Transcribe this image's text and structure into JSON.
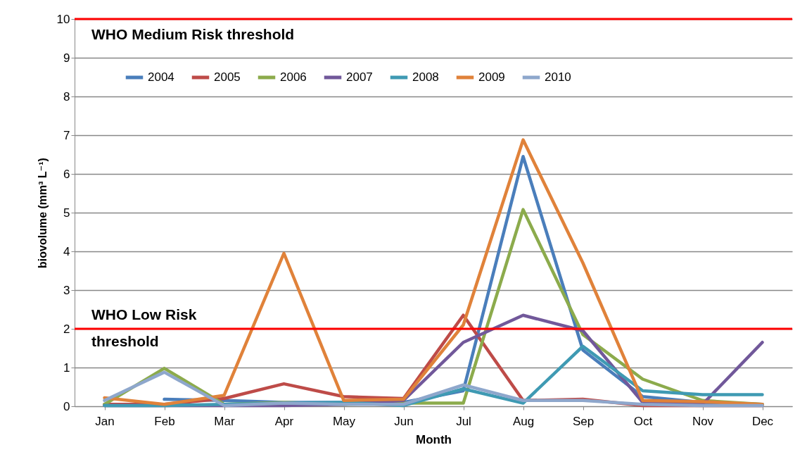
{
  "chart_data": {
    "type": "line",
    "xlabel": "Month",
    "ylabel": "biovolume (mm³ L⁻¹)",
    "categories": [
      "Jan",
      "Feb",
      "Mar",
      "Apr",
      "May",
      "Jun",
      "Jul",
      "Aug",
      "Sep",
      "Oct",
      "Nov",
      "Dec"
    ],
    "series": [
      {
        "name": "2004",
        "color": "#4a7ebb",
        "values": [
          null,
          0.18,
          0.15,
          0.1,
          0.1,
          0.1,
          0.4,
          6.45,
          1.45,
          0.25,
          0.1,
          0.05
        ]
      },
      {
        "name": "2005",
        "color": "#be4b48",
        "values": [
          0.05,
          0.05,
          0.2,
          0.58,
          0.25,
          0.2,
          2.35,
          0.15,
          0.18,
          0.02,
          0.02,
          0.02
        ]
      },
      {
        "name": "2006",
        "color": "#8cab4c",
        "values": [
          0.05,
          0.98,
          0.05,
          0.1,
          0.05,
          0.08,
          0.08,
          5.08,
          1.85,
          0.7,
          0.15,
          0.05
        ]
      },
      {
        "name": "2007",
        "color": "#71589a",
        "values": [
          0.02,
          0.02,
          0.02,
          0.02,
          0.05,
          0.15,
          1.65,
          2.35,
          1.95,
          0.1,
          0.05,
          1.65
        ]
      },
      {
        "name": "2008",
        "color": "#3f9ab3",
        "values": [
          0.02,
          0.02,
          0.05,
          0.08,
          0.1,
          0.02,
          0.45,
          0.08,
          1.55,
          0.4,
          0.3,
          0.3
        ]
      },
      {
        "name": "2009",
        "color": "#e0823a",
        "values": [
          0.22,
          0.05,
          0.28,
          3.95,
          0.15,
          0.18,
          2.1,
          6.88,
          3.7,
          0.15,
          0.12,
          0.05
        ]
      },
      {
        "name": "2010",
        "color": "#8ea7cc",
        "values": [
          0.15,
          0.88,
          0.02,
          0.08,
          0.05,
          0.05,
          0.55,
          0.15,
          0.15,
          0.05,
          0.02,
          0.02
        ]
      }
    ],
    "ylim": [
      0,
      10
    ],
    "yticks": [
      0,
      1,
      2,
      3,
      4,
      5,
      6,
      7,
      8,
      9,
      10
    ],
    "grid": "y",
    "legend": "top",
    "ref_lines": [
      {
        "axis": "y",
        "value": 10,
        "label": "WHO Medium Risk threshold",
        "color": "#ff0000"
      },
      {
        "axis": "y",
        "value": 2,
        "label": "WHO Low Risk threshold",
        "color": "#ff0000"
      }
    ]
  }
}
